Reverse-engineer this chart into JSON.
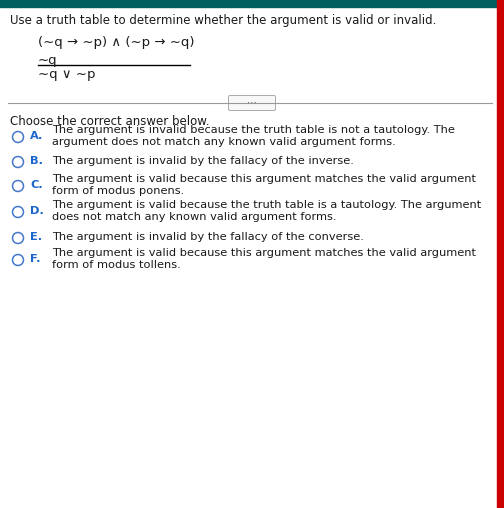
{
  "header_text": "Use a truth table to determine whether the argument is valid or invalid.",
  "header_color": "#1a1a1a",
  "top_bar_color": "#005f5f",
  "right_bar_color": "#cc0000",
  "background_color": "#ffffff",
  "premise1": "(∼q → ∼p) ∧ (∼p → ∼q)",
  "premise2": "∼q",
  "conclusion": "∼q ∨ ∼p",
  "choose_text": "Choose the correct answer below.",
  "options": [
    {
      "letter": "A.",
      "line1": "The argument is invalid because the truth table is not a tautology. The",
      "line2": "argument does not match any known valid argument forms."
    },
    {
      "letter": "B.",
      "line1": "The argument is invalid by the fallacy of the inverse.",
      "line2": ""
    },
    {
      "letter": "C.",
      "line1": "The argument is valid because this argument matches the valid argument",
      "line2": "form of modus ponens."
    },
    {
      "letter": "D.",
      "line1": "The argument is valid because the truth table is a tautology. The argument",
      "line2": "does not match any known valid argument forms."
    },
    {
      "letter": "E.",
      "line1": "The argument is invalid by the fallacy of the converse.",
      "line2": ""
    },
    {
      "letter": "F.",
      "line1": "The argument is valid because this argument matches the valid argument",
      "line2": "form of modus tollens."
    }
  ],
  "letter_color": "#1a66cc",
  "text_color": "#1a1a1a",
  "circle_color": "#4477cc",
  "font_size_header": 8.5,
  "font_size_logic": 9.5,
  "font_size_options": 8.2,
  "font_size_choose": 8.5,
  "divider_color": "#999999",
  "dots_color": "#666666",
  "top_bar_height": 7,
  "right_bar_width": 7
}
